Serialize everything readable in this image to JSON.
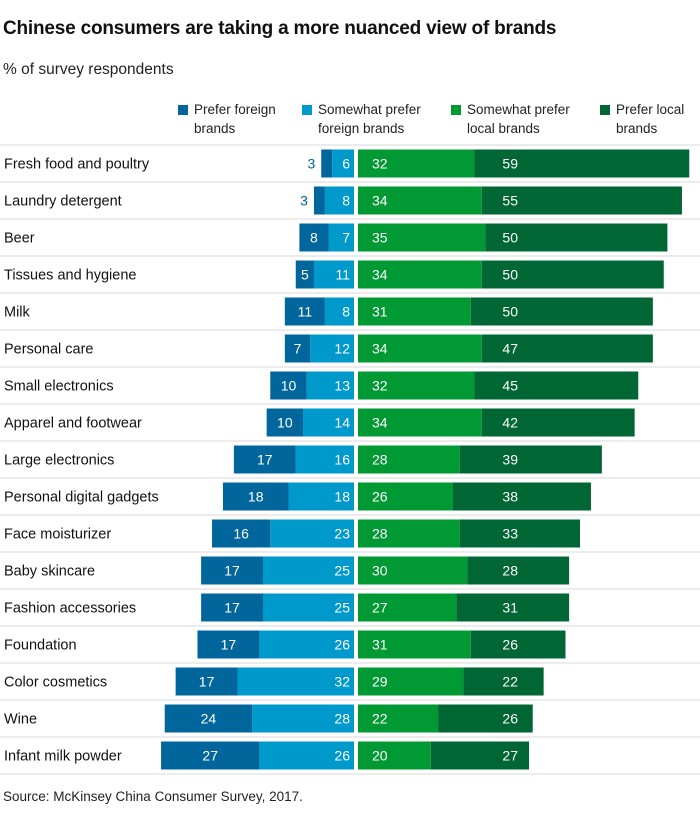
{
  "chart_data": {
    "type": "bar",
    "orientation": "horizontal-diverging-stacked",
    "title": "Chinese consumers are taking a more nuanced view of brands",
    "subtitle": "% of survey respondents",
    "source": "Source: McKinsey China Consumer Survey, 2017.",
    "legend_position": "top",
    "categories": [
      "Fresh food and poultry",
      "Laundry detergent",
      "Beer",
      "Tissues and hygiene",
      "Milk",
      "Personal care",
      "Small electronics",
      "Apparel and footwear",
      "Large electronics",
      "Personal digital gadgets",
      "Face moisturizer",
      "Baby skincare",
      "Fashion accessories",
      "Foundation",
      "Color cosmetics",
      "Wine",
      "Infant milk powder"
    ],
    "series": [
      {
        "name": "Prefer foreign brands",
        "color": "#00669c",
        "side": "foreign",
        "values": [
          3,
          3,
          8,
          5,
          11,
          7,
          10,
          10,
          17,
          18,
          16,
          17,
          17,
          17,
          17,
          24,
          27
        ]
      },
      {
        "name": "Somewhat prefer foreign brands",
        "color": "#0099cc",
        "side": "foreign",
        "values": [
          6,
          8,
          7,
          11,
          8,
          12,
          13,
          14,
          16,
          18,
          23,
          25,
          25,
          26,
          32,
          28,
          26
        ]
      },
      {
        "name": "Somewhat prefer local brands",
        "color": "#009933",
        "side": "local",
        "values": [
          32,
          34,
          35,
          34,
          31,
          34,
          32,
          34,
          28,
          26,
          28,
          30,
          27,
          31,
          29,
          22,
          20
        ]
      },
      {
        "name": "Prefer local brands",
        "color": "#006633",
        "side": "local",
        "values": [
          59,
          55,
          50,
          50,
          50,
          47,
          45,
          42,
          39,
          38,
          33,
          28,
          31,
          26,
          22,
          26,
          27
        ]
      }
    ],
    "legend_labels": [
      [
        "Prefer foreign",
        "brands"
      ],
      [
        "Somewhat prefer",
        "foreign brands"
      ],
      [
        "Somewhat prefer",
        "local brands"
      ],
      [
        "Prefer local",
        "brands"
      ]
    ]
  }
}
